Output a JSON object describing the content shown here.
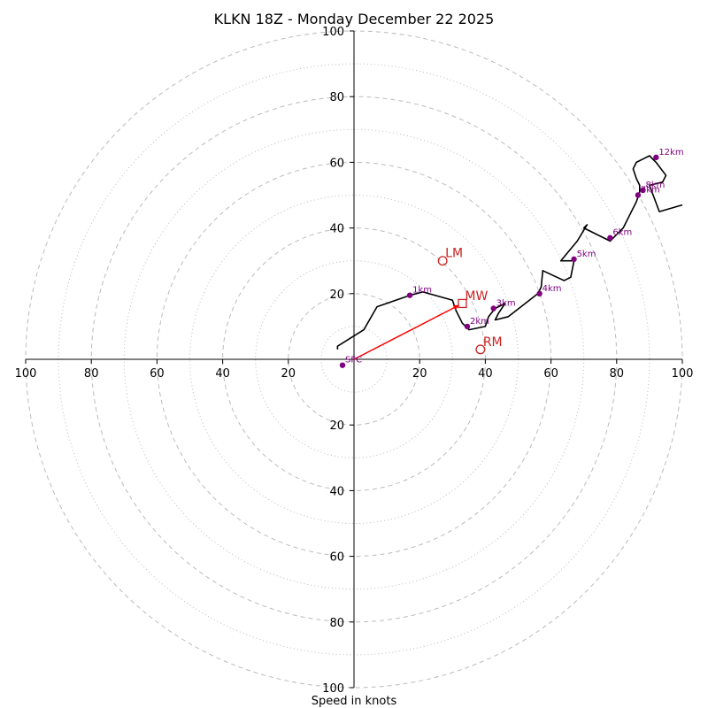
{
  "chart_data": {
    "type": "hodograph",
    "title": "KLKN 18Z - Monday December 22 2025",
    "xlabel": "Speed in knots",
    "range": [
      -100,
      100
    ],
    "ring_major": [
      20,
      40,
      60,
      80,
      100
    ],
    "ring_minor": [
      10,
      30,
      50,
      70,
      90
    ],
    "x_tick_labels": [
      "100",
      "80",
      "60",
      "40",
      "20",
      "20",
      "40",
      "60",
      "80",
      "100"
    ],
    "x_tick_values": [
      -100,
      -80,
      -60,
      -40,
      -20,
      20,
      40,
      60,
      80,
      100
    ],
    "y_tick_labels": [
      "100",
      "80",
      "60",
      "40",
      "20",
      "20",
      "40",
      "60",
      "80",
      "100"
    ],
    "y_tick_values": [
      100,
      80,
      60,
      40,
      20,
      -20,
      -40,
      -60,
      -80,
      -100
    ],
    "colors": {
      "grid": "#bbbbbb",
      "trace": "#000000",
      "height_marker": "#800080",
      "motion": "#cc2222",
      "shear_vector": "#ff0000"
    },
    "trace": [
      [
        -5,
        3
      ],
      [
        -5,
        4
      ],
      [
        3,
        9
      ],
      [
        7,
        16
      ],
      [
        17,
        19.5
      ],
      [
        21,
        20.5
      ],
      [
        30,
        18
      ],
      [
        31,
        15
      ],
      [
        33,
        11
      ],
      [
        35,
        9
      ],
      [
        40,
        10
      ],
      [
        41,
        13
      ],
      [
        43,
        15.5
      ],
      [
        46,
        17
      ],
      [
        44,
        14
      ],
      [
        43,
        12
      ],
      [
        47,
        13
      ],
      [
        56,
        20
      ],
      [
        57,
        22
      ],
      [
        57.5,
        27
      ],
      [
        64,
        24
      ],
      [
        66,
        25
      ],
      [
        67,
        30
      ],
      [
        65,
        30
      ],
      [
        63,
        30
      ],
      [
        68,
        36
      ],
      [
        71,
        41
      ],
      [
        70,
        40
      ],
      [
        78,
        36
      ],
      [
        82,
        40
      ],
      [
        84,
        44
      ],
      [
        86,
        48
      ],
      [
        87,
        51
      ],
      [
        87,
        53
      ],
      [
        86,
        55
      ],
      [
        85,
        58
      ],
      [
        86,
        60
      ],
      [
        88,
        61
      ],
      [
        90,
        62
      ],
      [
        92,
        60
      ],
      [
        95,
        56
      ],
      [
        94,
        54
      ],
      [
        90,
        53
      ],
      [
        93,
        45
      ],
      [
        100,
        47
      ]
    ],
    "height_markers": [
      {
        "label": "SFC",
        "u": -3.5,
        "v": -1.8
      },
      {
        "label": "1km",
        "u": 17,
        "v": 19.5
      },
      {
        "label": "2km",
        "u": 34.5,
        "v": 10
      },
      {
        "label": "3km",
        "u": 42.5,
        "v": 15.5
      },
      {
        "label": "4km",
        "u": 56.5,
        "v": 20
      },
      {
        "label": "5km",
        "u": 67,
        "v": 30.5
      },
      {
        "label": "6km",
        "u": 78,
        "v": 37
      },
      {
        "label": "7km",
        "u": 86.5,
        "v": 50
      },
      {
        "label": "8km",
        "u": 88,
        "v": 51.5
      },
      {
        "label": "12km",
        "u": 92,
        "v": 61.5
      }
    ],
    "storm_motion": [
      {
        "label": "LM",
        "marker": "circle",
        "u": 27,
        "v": 30
      },
      {
        "label": "RM",
        "marker": "circle",
        "u": 38.5,
        "v": 3
      },
      {
        "label": "MW",
        "marker": "square",
        "u": 33,
        "v": 17
      }
    ],
    "shear_vector": {
      "from": [
        0,
        0
      ],
      "to": [
        32,
        16.5
      ]
    }
  }
}
